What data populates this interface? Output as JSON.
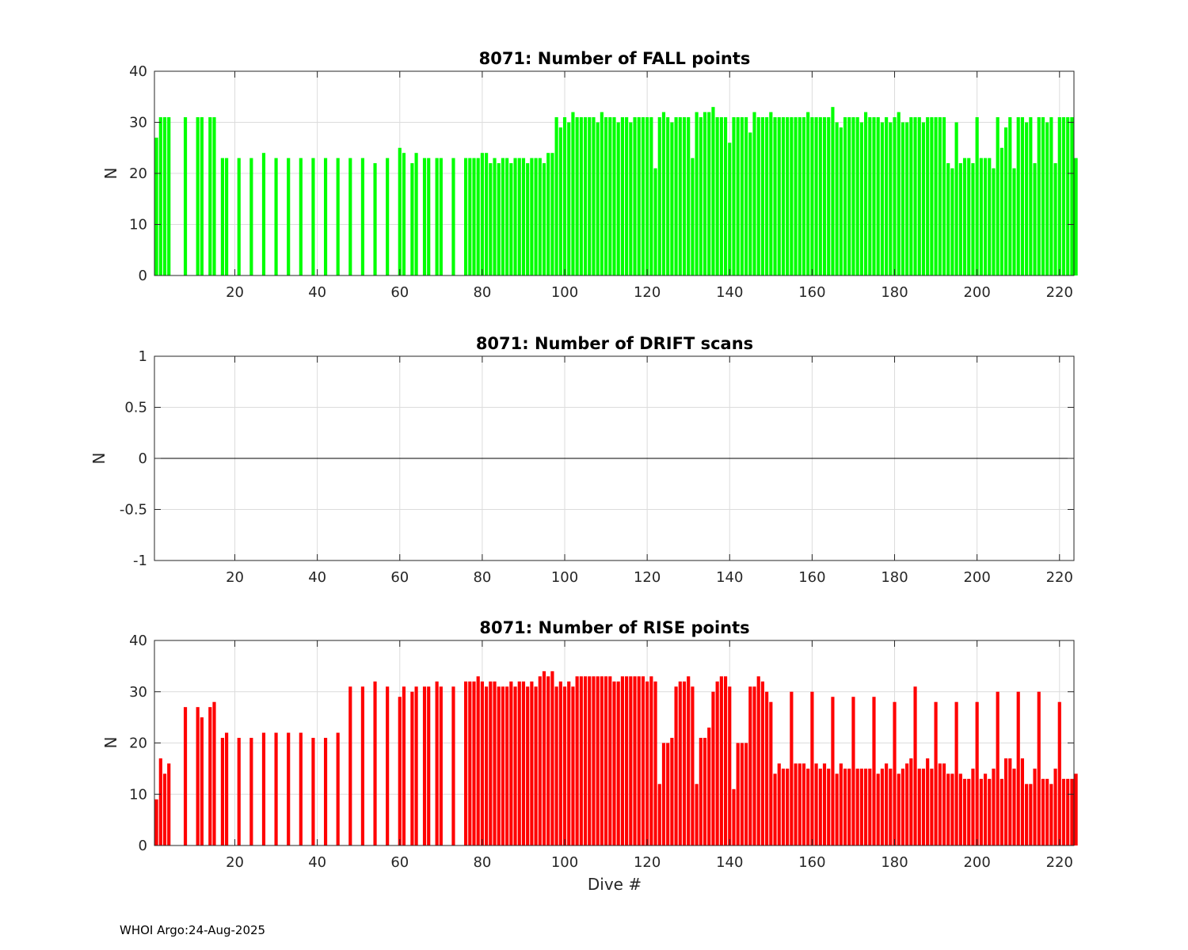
{
  "footer": "WHOI Argo:24-Aug-2025",
  "colors": {
    "fall": "#00ff00",
    "rise": "#ff0000",
    "axis": "#262626",
    "grid": "#dcdcdc"
  },
  "chart_data": [
    {
      "type": "bar",
      "title": "8071: Number of FALL points",
      "xlabel": "",
      "ylabel": "N",
      "xlim": [
        0.5,
        223.5
      ],
      "ylim": [
        0,
        40
      ],
      "xticks": [
        20,
        40,
        60,
        80,
        100,
        120,
        140,
        160,
        180,
        200,
        220
      ],
      "xtick_labels": [
        "20",
        "40",
        "60",
        "80",
        "100",
        "120",
        "140",
        "160",
        "180",
        "200",
        "220"
      ],
      "yticks": [
        0,
        10,
        20,
        30,
        40
      ],
      "ytick_labels": [
        "0",
        "10",
        "20",
        "30",
        "40"
      ],
      "grid": true,
      "x_start": 1,
      "values": [
        27,
        31,
        31,
        31,
        0,
        0,
        0,
        31,
        0,
        0,
        31,
        31,
        0,
        31,
        31,
        0,
        23,
        23,
        0,
        0,
        23,
        0,
        0,
        23,
        0,
        0,
        24,
        0,
        0,
        23,
        0,
        0,
        23,
        0,
        0,
        23,
        0,
        0,
        23,
        0,
        0,
        23,
        0,
        0,
        23,
        0,
        0,
        23,
        0,
        0,
        23,
        0,
        0,
        22,
        0,
        0,
        23,
        0,
        0,
        25,
        24,
        0,
        22,
        24,
        0,
        23,
        23,
        0,
        23,
        23,
        0,
        0,
        23,
        0,
        0,
        23,
        23,
        23,
        23,
        24,
        24,
        22,
        23,
        22,
        23,
        23,
        22,
        23,
        23,
        23,
        22,
        23,
        23,
        23,
        22,
        24,
        24,
        31,
        29,
        31,
        30,
        32,
        31,
        31,
        31,
        31,
        31,
        30,
        32,
        31,
        31,
        31,
        30,
        31,
        31,
        30,
        31,
        31,
        31,
        31,
        31,
        21,
        31,
        32,
        31,
        30,
        31,
        31,
        31,
        31,
        23,
        32,
        31,
        32,
        32,
        33,
        31,
        31,
        31,
        26,
        31,
        31,
        31,
        31,
        28,
        32,
        31,
        31,
        31,
        32,
        31,
        31,
        31,
        31,
        31,
        31,
        31,
        31,
        32,
        31,
        31,
        31,
        31,
        31,
        33,
        30,
        29,
        31,
        31,
        31,
        31,
        30,
        32,
        31,
        31,
        31,
        30,
        31,
        30,
        31,
        32,
        30,
        30,
        31,
        31,
        31,
        30,
        31,
        31,
        31,
        31,
        31,
        22,
        21,
        30,
        22,
        23,
        23,
        22,
        31,
        23,
        23,
        23,
        21,
        31,
        25,
        29,
        31,
        21,
        31,
        31,
        30,
        31,
        22,
        31,
        31,
        30,
        31,
        22,
        31,
        31,
        31,
        31,
        23
      ]
    },
    {
      "type": "bar",
      "title": "8071: Number of DRIFT scans",
      "xlabel": "",
      "ylabel": "N",
      "xlim": [
        0.5,
        223.5
      ],
      "ylim": [
        -1,
        1
      ],
      "xticks": [
        20,
        40,
        60,
        80,
        100,
        120,
        140,
        160,
        180,
        200,
        220
      ],
      "xtick_labels": [
        "20",
        "40",
        "60",
        "80",
        "100",
        "120",
        "140",
        "160",
        "180",
        "200",
        "220"
      ],
      "yticks": [
        -1,
        -0.5,
        0,
        0.5,
        1
      ],
      "ytick_labels": [
        "-1",
        "-0.5",
        "0",
        "0.5",
        "1"
      ],
      "grid": true,
      "values": []
    },
    {
      "type": "bar",
      "title": "8071: Number of RISE points",
      "xlabel": "Dive #",
      "ylabel": "N",
      "xlim": [
        0.5,
        223.5
      ],
      "ylim": [
        0,
        40
      ],
      "xticks": [
        20,
        40,
        60,
        80,
        100,
        120,
        140,
        160,
        180,
        200,
        220
      ],
      "xtick_labels": [
        "20",
        "40",
        "60",
        "80",
        "100",
        "120",
        "140",
        "160",
        "180",
        "200",
        "220"
      ],
      "yticks": [
        0,
        10,
        20,
        30,
        40
      ],
      "ytick_labels": [
        "0",
        "10",
        "20",
        "30",
        "40"
      ],
      "grid": true,
      "x_start": 1,
      "values": [
        9,
        17,
        14,
        16,
        0,
        0,
        0,
        27,
        0,
        0,
        27,
        25,
        0,
        27,
        28,
        0,
        21,
        22,
        0,
        0,
        21,
        0,
        0,
        21,
        0,
        0,
        22,
        0,
        0,
        22,
        0,
        0,
        22,
        0,
        0,
        22,
        0,
        0,
        21,
        0,
        0,
        21,
        0,
        0,
        22,
        0,
        0,
        31,
        0,
        0,
        31,
        0,
        0,
        32,
        0,
        0,
        31,
        0,
        0,
        29,
        31,
        0,
        30,
        31,
        0,
        31,
        31,
        0,
        32,
        31,
        0,
        0,
        31,
        0,
        0,
        32,
        32,
        32,
        33,
        32,
        31,
        32,
        32,
        31,
        31,
        31,
        32,
        31,
        32,
        32,
        31,
        32,
        31,
        33,
        34,
        33,
        34,
        31,
        32,
        31,
        32,
        31,
        33,
        33,
        33,
        33,
        33,
        33,
        33,
        33,
        33,
        32,
        32,
        33,
        33,
        33,
        33,
        33,
        33,
        32,
        33,
        32,
        12,
        20,
        20,
        21,
        31,
        32,
        32,
        33,
        31,
        12,
        21,
        21,
        23,
        30,
        32,
        33,
        33,
        31,
        11,
        20,
        20,
        20,
        31,
        31,
        33,
        32,
        30,
        28,
        14,
        16,
        15,
        15,
        30,
        16,
        16,
        16,
        15,
        30,
        16,
        15,
        16,
        15,
        29,
        14,
        16,
        15,
        15,
        29,
        15,
        15,
        15,
        15,
        29,
        14,
        15,
        16,
        15,
        28,
        14,
        15,
        16,
        17,
        31,
        15,
        15,
        17,
        15,
        28,
        16,
        16,
        14,
        14,
        28,
        14,
        13,
        13,
        15,
        28,
        13,
        14,
        13,
        15,
        30,
        13,
        17,
        17,
        15,
        30,
        17,
        12,
        12,
        15,
        30,
        13,
        13,
        12,
        15,
        28,
        13,
        13,
        13,
        14
      ]
    }
  ]
}
